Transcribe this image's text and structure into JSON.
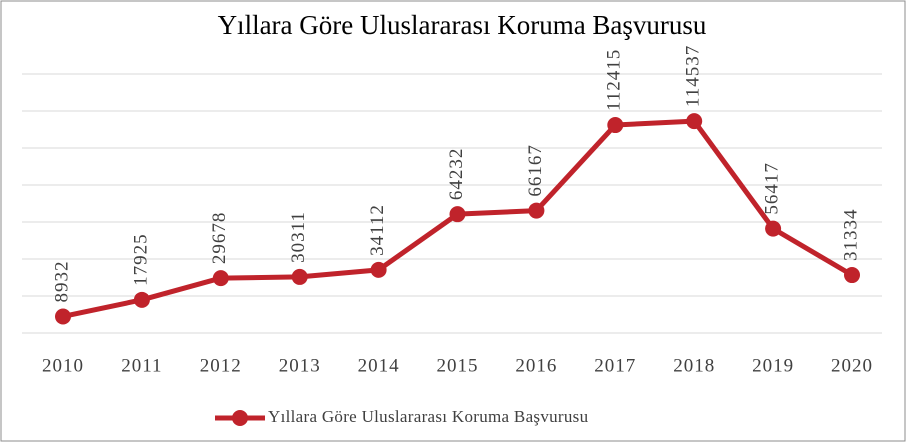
{
  "chart_data": {
    "type": "line",
    "title": "Yıllara Göre Uluslararası Koruma Başvurusu",
    "categories": [
      "2010",
      "2011",
      "2012",
      "2013",
      "2014",
      "2015",
      "2016",
      "2017",
      "2018",
      "2019",
      "2020"
    ],
    "series": [
      {
        "name": "Yıllara Göre Uluslararası Koruma Başvurusu",
        "color": "#c0232b",
        "values": [
          8932,
          17925,
          29678,
          30311,
          34112,
          64232,
          66167,
          112415,
          114537,
          56417,
          31334
        ]
      }
    ],
    "ylim": [
      0,
      140000
    ],
    "yticks": [
      0,
      20000,
      40000,
      60000,
      80000,
      100000,
      120000,
      140000
    ],
    "grid": true,
    "legend": "bottom"
  }
}
